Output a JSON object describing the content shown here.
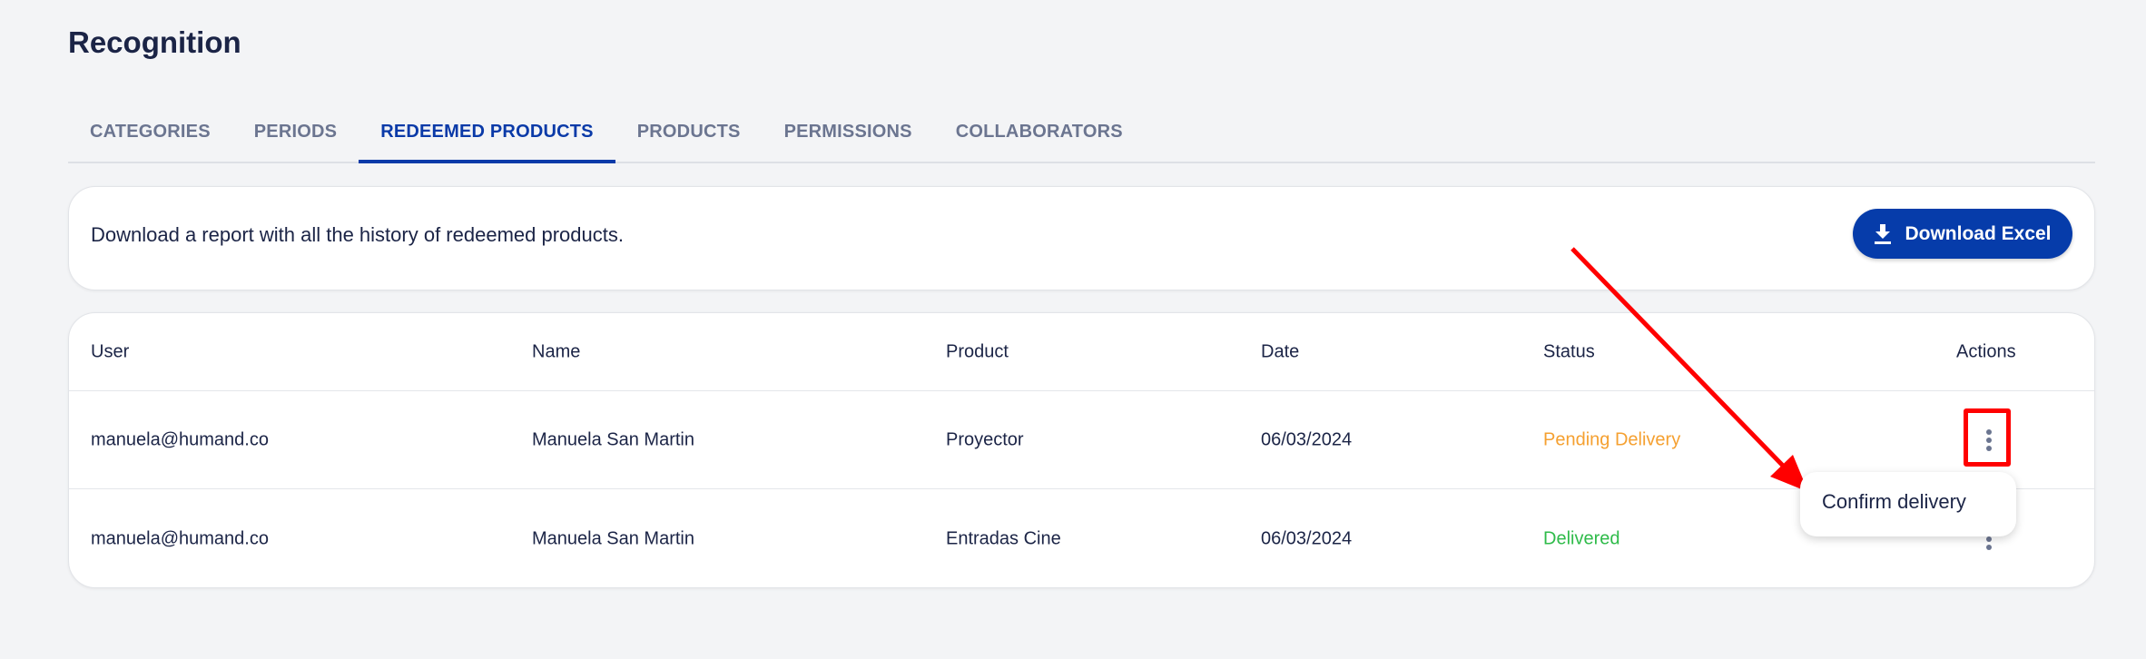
{
  "page": {
    "title": "Recognition"
  },
  "tabs": [
    {
      "label": "CATEGORIES"
    },
    {
      "label": "PERIODS"
    },
    {
      "label": "REDEEMED PRODUCTS",
      "active": true
    },
    {
      "label": "PRODUCTS"
    },
    {
      "label": "PERMISSIONS"
    },
    {
      "label": "COLLABORATORS"
    }
  ],
  "report": {
    "description": "Download a report with all the history of redeemed products.",
    "button_label": "Download Excel",
    "button_icon": "download-icon"
  },
  "table": {
    "headers": [
      "User",
      "Name",
      "Product",
      "Date",
      "Status",
      "Actions"
    ],
    "rows": [
      {
        "user": "manuela@humand.co",
        "name": "Manuela San Martin",
        "product": "Proyector",
        "date": "06/03/2024",
        "status": "Pending Delivery",
        "status_color": "#f5a030"
      },
      {
        "user": "manuela@humand.co",
        "name": "Manuela San Martin",
        "product": "Entradas Cine",
        "date": "06/03/2024",
        "status": "Delivered",
        "status_color": "#2fbb4a"
      }
    ]
  },
  "context_menu": {
    "items": [
      {
        "label": "Confirm delivery"
      }
    ]
  },
  "colors": {
    "accent": "#063caa",
    "annotation": "#ff0000"
  }
}
